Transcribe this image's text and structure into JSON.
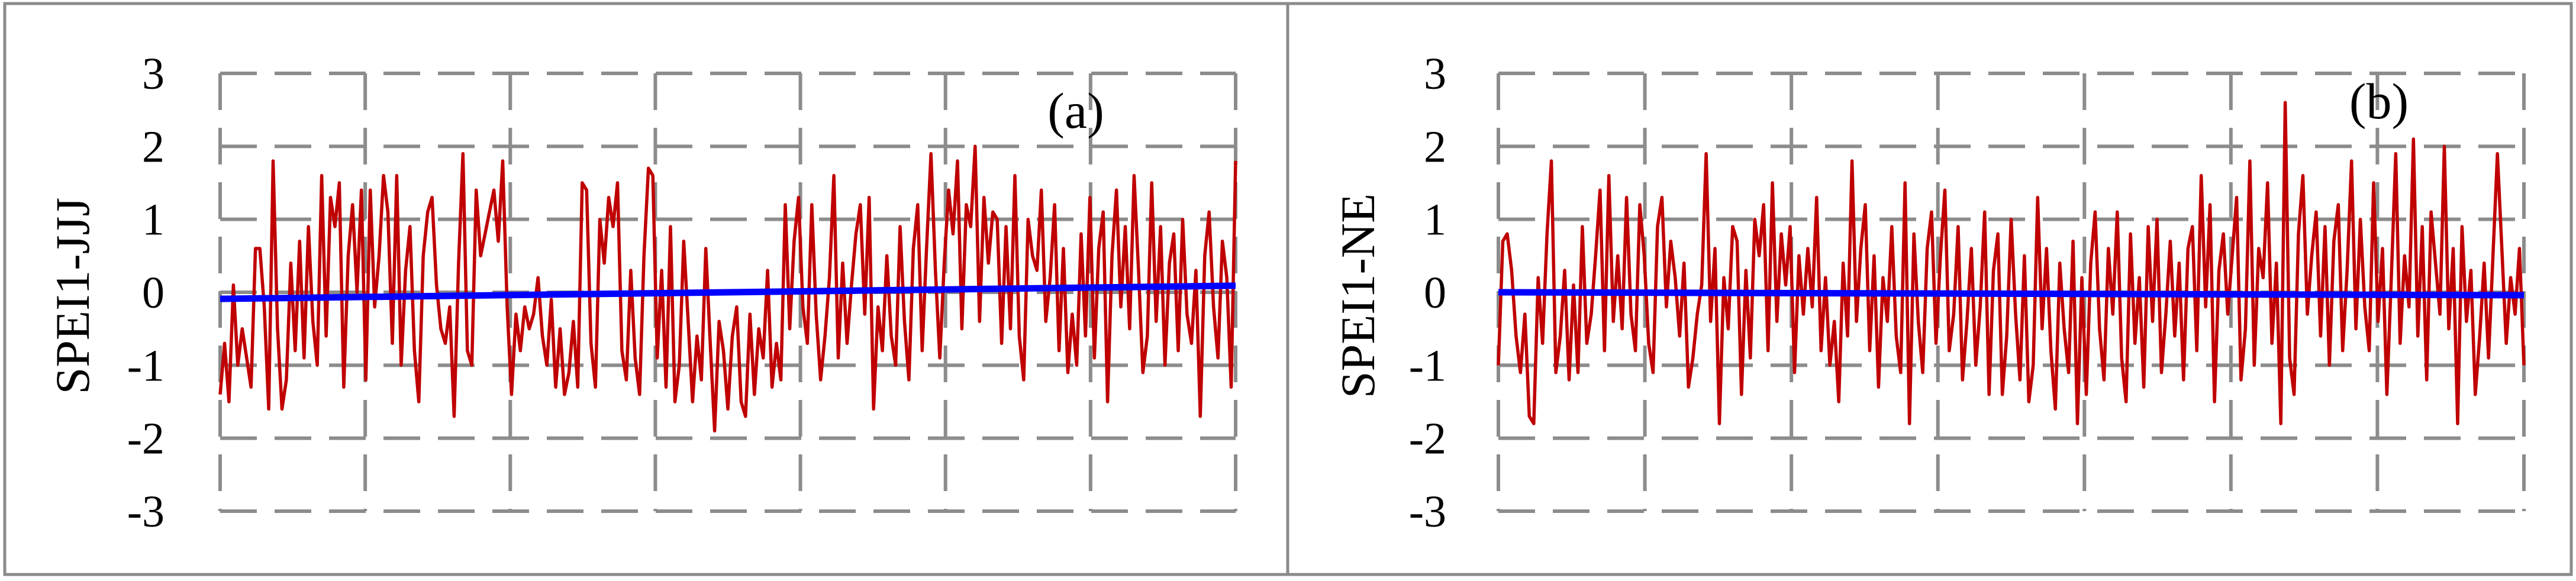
{
  "chart_data": [
    {
      "type": "line",
      "panel_label": "(a)",
      "ylabel": "SPEI1-JJJ",
      "ylim": [
        -3,
        3
      ],
      "y_ticks": [
        "3",
        "2",
        "1",
        "0",
        "-1",
        "-2",
        "-3"
      ],
      "grid": true,
      "colors": {
        "series": "#c00000",
        "trend": "#0000ff"
      },
      "series": [
        {
          "values": [
            -1.4,
            -0.7,
            -1.5,
            0.1,
            -1.0,
            -0.5,
            -0.9,
            -1.3,
            0.6,
            0.6,
            -0.2,
            -1.6,
            1.8,
            -0.5,
            -1.6,
            -1.2,
            0.4,
            -0.8,
            0.7,
            -0.9,
            0.9,
            -0.4,
            -1.0,
            1.6,
            -0.6,
            1.3,
            0.9,
            1.5,
            -1.3,
            0.5,
            1.2,
            0.0,
            1.4,
            -1.2,
            1.4,
            -0.2,
            0.5,
            1.6,
            1.1,
            -0.7,
            1.6,
            -1.0,
            0.3,
            0.9,
            -0.8,
            -1.5,
            0.5,
            1.1,
            1.3,
            0.1,
            -0.5,
            -0.7,
            -0.2,
            -1.7,
            0.4,
            1.9,
            -0.8,
            -1.0,
            1.4,
            0.5,
            0.8,
            1.1,
            1.4,
            0.7,
            1.8,
            -0.2,
            -1.4,
            -0.3,
            -0.8,
            -0.2,
            -0.5,
            -0.3,
            0.2,
            -0.6,
            -1.0,
            -0.1,
            -1.3,
            -0.5,
            -1.4,
            -1.1,
            -0.4,
            -1.3,
            1.5,
            1.4,
            -0.7,
            -1.3,
            1.0,
            0.4,
            1.3,
            0.9,
            1.5,
            -0.8,
            -1.2,
            0.3,
            -0.9,
            -1.4,
            0.5,
            1.7,
            1.6,
            -0.9,
            0.3,
            -1.3,
            0.9,
            -1.5,
            -1.0,
            0.7,
            -0.4,
            -1.5,
            -0.6,
            -1.2,
            0.6,
            -0.7,
            -1.9,
            -0.4,
            -0.8,
            -1.6,
            -0.6,
            -0.2,
            -1.5,
            -1.7,
            -0.3,
            -1.4,
            -0.5,
            -0.9,
            0.3,
            -1.3,
            -0.7,
            -1.2,
            1.2,
            -0.5,
            0.7,
            1.3,
            -0.2,
            -0.7,
            1.2,
            -0.3,
            -1.2,
            -0.6,
            0.2,
            1.6,
            -0.9,
            0.4,
            -0.7,
            0.1,
            0.8,
            1.2,
            -0.3,
            1.3,
            -1.6,
            -0.2,
            -0.8,
            0.5,
            -0.6,
            -1.0,
            0.9,
            -0.4,
            -1.2,
            0.6,
            1.2,
            -0.8,
            0.6,
            1.9,
            0.3,
            -0.9,
            0.4,
            1.4,
            0.8,
            1.8,
            -0.5,
            1.2,
            0.9,
            2.0,
            -0.4,
            1.3,
            0.4,
            1.1,
            1.0,
            -0.7,
            0.9,
            -0.5,
            1.6,
            -0.6,
            -1.2,
            1.0,
            0.5,
            0.3,
            1.4,
            -0.4,
            0.2,
            1.2,
            -0.8,
            0.6,
            -1.1,
            -0.3,
            -1.0,
            0.8,
            -0.6,
            1.3,
            -0.9,
            0.6,
            1.1,
            -1.5,
            0.5,
            1.4,
            -0.2,
            0.9,
            -0.5,
            1.6,
            0.3,
            -1.1,
            -0.6,
            1.5,
            -0.4,
            0.9,
            -1.0,
            0.4,
            0.8,
            -0.8,
            1.0,
            -0.3,
            -0.7,
            0.3,
            -1.7,
            0.5,
            1.1,
            -0.2,
            -0.9,
            0.7,
            0.2,
            -1.3,
            1.8
          ],
          "color": "#c00000"
        },
        {
          "values": [
            -0.09,
            0.09
          ],
          "color": "#0000ff"
        }
      ]
    },
    {
      "type": "line",
      "panel_label": "(b)",
      "ylabel": "SPEI1-NE",
      "ylim": [
        -3,
        3
      ],
      "y_ticks": [
        "3",
        "2",
        "1",
        "0",
        "-1",
        "-2",
        "-3"
      ],
      "grid": true,
      "colors": {
        "series": "#c00000",
        "trend": "#0000ff"
      },
      "series": [
        {
          "values": [
            -1.0,
            0.7,
            0.8,
            0.3,
            -0.6,
            -1.1,
            -0.3,
            -1.7,
            -1.8,
            0.2,
            -0.7,
            0.8,
            1.8,
            -1.1,
            -0.6,
            0.3,
            -1.2,
            0.1,
            -1.1,
            0.9,
            -0.7,
            -0.3,
            0.5,
            1.4,
            -0.8,
            1.6,
            -0.4,
            0.5,
            -0.5,
            1.3,
            -0.3,
            -0.8,
            1.2,
            0.5,
            -0.7,
            -1.1,
            0.9,
            1.3,
            -0.2,
            0.7,
            0.2,
            -0.6,
            0.4,
            -1.3,
            -0.9,
            -0.3,
            0.1,
            1.9,
            -0.4,
            0.6,
            -1.8,
            0.2,
            -0.5,
            0.9,
            0.7,
            -1.4,
            0.3,
            -0.9,
            1.0,
            0.5,
            1.2,
            -0.8,
            1.5,
            -0.4,
            0.8,
            0.1,
            0.9,
            -1.1,
            0.5,
            -0.3,
            0.6,
            -0.2,
            1.3,
            -0.8,
            0.2,
            -1.0,
            -0.4,
            -1.5,
            0.4,
            -0.6,
            1.8,
            -0.4,
            0.6,
            1.2,
            -0.8,
            0.5,
            -1.3,
            0.2,
            -0.4,
            0.9,
            -0.6,
            -1.1,
            1.5,
            -1.8,
            0.8,
            -0.4,
            -1.1,
            0.6,
            1.1,
            -0.7,
            0.5,
            1.4,
            -0.8,
            -0.3,
            0.9,
            -1.2,
            -0.4,
            0.6,
            -1.0,
            -0.2,
            1.1,
            -1.4,
            0.3,
            0.8,
            -1.4,
            -0.6,
            1.0,
            -0.3,
            -1.2,
            0.5,
            -1.5,
            -1.0,
            1.3,
            -0.5,
            0.6,
            -0.8,
            -1.6,
            0.4,
            -0.5,
            -1.1,
            0.7,
            -1.8,
            0.2,
            -1.4,
            0.4,
            1.1,
            -0.5,
            -1.2,
            0.6,
            -0.3,
            1.1,
            -0.9,
            -1.5,
            0.8,
            -0.7,
            0.2,
            -1.3,
            0.9,
            -0.4,
            1.0,
            -1.1,
            -0.3,
            0.7,
            -0.6,
            0.4,
            -1.2,
            0.6,
            0.9,
            -0.8,
            1.6,
            -0.2,
            1.2,
            -1.5,
            0.3,
            0.8,
            -0.3,
            0.5,
            1.3,
            -1.2,
            -0.5,
            1.8,
            -1.0,
            0.6,
            0.2,
            1.5,
            -0.7,
            0.4,
            -1.8,
            2.6,
            -0.9,
            -1.4,
            0.8,
            1.6,
            -0.3,
            0.5,
            1.1,
            -0.6,
            0.9,
            -1.0,
            0.7,
            1.2,
            -0.8,
            0.3,
            1.8,
            -0.5,
            1.0,
            -0.2,
            -0.8,
            1.5,
            -0.4,
            0.6,
            -1.4,
            0.2,
            1.9,
            -0.7,
            0.5,
            -0.2,
            2.1,
            -0.6,
            0.9,
            -1.2,
            1.1,
            0.4,
            -0.3,
            2.0,
            -0.5,
            0.6,
            -1.8,
            0.9,
            -0.4,
            0.3,
            -1.4,
            -0.6,
            0.4,
            -0.9,
            0.5,
            1.9,
            0.6,
            -0.7,
            0.2,
            -0.3,
            0.6,
            -1.0
          ],
          "color": "#c00000"
        },
        {
          "values": [
            0.0,
            -0.04
          ],
          "color": "#0000ff"
        }
      ]
    }
  ]
}
